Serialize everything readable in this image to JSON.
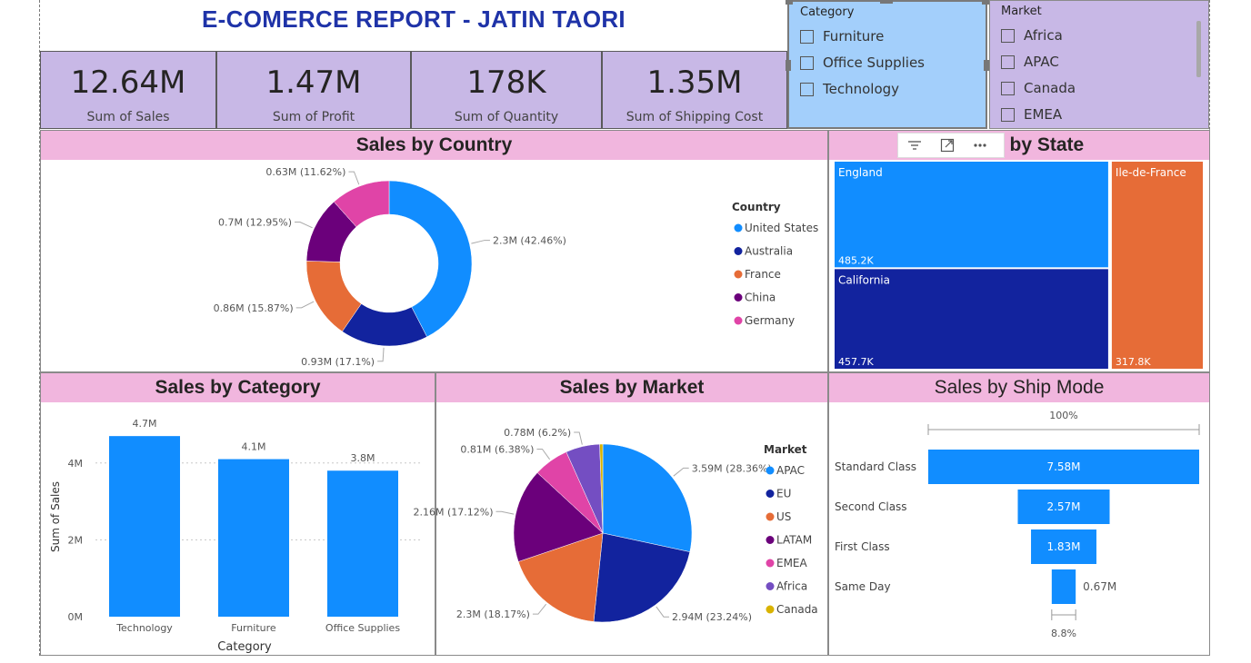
{
  "report_title": "E-COMERCE REPORT - JATIN TAORI",
  "kpis": [
    {
      "value": "12.64M",
      "label": "Sum of Sales"
    },
    {
      "value": "1.47M",
      "label": "Sum of Profit"
    },
    {
      "value": "178K",
      "label": "Sum of Quantity"
    },
    {
      "value": "1.35M",
      "label": "Sum of Shipping Cost"
    }
  ],
  "category_slicer": {
    "header": "Category",
    "items": [
      "Furniture",
      "Office Supplies",
      "Technology"
    ]
  },
  "market_slicer": {
    "header": "Market",
    "items": [
      "Africa",
      "APAC",
      "Canada",
      "EMEA"
    ]
  },
  "colors": {
    "accent": "#118dff",
    "navy": "#12239e",
    "orange": "#e66c37",
    "purple": "#6b007b",
    "pink": "#e044a7",
    "violet": "#744ec2",
    "gold": "#d9b300",
    "kpi_bg": "#c8b8e6",
    "header_bg": "#f1b6de",
    "title": "#1f33a8"
  },
  "visual_header_icons": [
    "filter-icon",
    "focus-mode-icon",
    "more-options-icon"
  ],
  "chart_data": [
    {
      "type": "pie",
      "variant": "donut",
      "title": "Sales by Country",
      "legend_title": "Country",
      "legend_position": "right",
      "slices": [
        {
          "name": "United States",
          "value": 2.3,
          "label": "2.3M (42.46%)",
          "color": "#118dff"
        },
        {
          "name": "Australia",
          "value": 0.93,
          "label": "0.93M (17.1%)",
          "color": "#12239e"
        },
        {
          "name": "France",
          "value": 0.86,
          "label": "0.86M (15.87%)",
          "color": "#e66c37"
        },
        {
          "name": "China",
          "value": 0.7,
          "label": "0.7M (12.95%)",
          "color": "#6b007b"
        },
        {
          "name": "Germany",
          "value": 0.63,
          "label": "0.63M (11.62%)",
          "color": "#e044a7"
        }
      ]
    },
    {
      "type": "treemap",
      "title": "Sales by State",
      "items": [
        {
          "name": "England",
          "value": 485.2,
          "label": "485.2K",
          "color": "#118dff"
        },
        {
          "name": "California",
          "value": 457.7,
          "label": "457.7K",
          "color": "#12239e"
        },
        {
          "name": "Ile-de-France",
          "value": 317.8,
          "label": "317.8K",
          "color": "#e66c37"
        }
      ]
    },
    {
      "type": "bar",
      "title": "Sales by Category",
      "xlabel": "Category",
      "ylabel": "Sum of Sales",
      "categories": [
        "Technology",
        "Furniture",
        "Office Supplies"
      ],
      "values": [
        4.7,
        4.1,
        3.8
      ],
      "data_labels": [
        "4.7M",
        "4.1M",
        "3.8M"
      ],
      "y_ticks": [
        "0M",
        "2M",
        "4M"
      ],
      "ylim": [
        0,
        5.2
      ],
      "grid": true,
      "color": "#118dff"
    },
    {
      "type": "pie",
      "title": "Sales by Market",
      "legend_title": "Market",
      "legend_position": "right",
      "slices": [
        {
          "name": "APAC",
          "value": 3.59,
          "label": "3.59M (28.36%)",
          "color": "#118dff"
        },
        {
          "name": "EU",
          "value": 2.94,
          "label": "2.94M (23.24%)",
          "color": "#12239e"
        },
        {
          "name": "US",
          "value": 2.3,
          "label": "2.3M (18.17%)",
          "color": "#e66c37"
        },
        {
          "name": "LATAM",
          "value": 2.16,
          "label": "2.16M (17.12%)",
          "color": "#6b007b"
        },
        {
          "name": "EMEA",
          "value": 0.81,
          "label": "0.81M (6.38%)",
          "color": "#e044a7"
        },
        {
          "name": "Africa",
          "value": 0.78,
          "label": "0.78M (6.2%)",
          "color": "#744ec2"
        },
        {
          "name": "Canada",
          "value": 0.07,
          "label": "",
          "color": "#d9b300"
        }
      ]
    },
    {
      "type": "funnel",
      "title": "Sales by Ship Mode",
      "top_label": "100%",
      "bottom_label": "8.8%",
      "stages": [
        {
          "name": "Standard Class",
          "value": 7.58,
          "label": "7.58M"
        },
        {
          "name": "Second Class",
          "value": 2.57,
          "label": "2.57M"
        },
        {
          "name": "First Class",
          "value": 1.83,
          "label": "1.83M"
        },
        {
          "name": "Same Day",
          "value": 0.67,
          "label": "0.67M"
        }
      ],
      "color": "#118dff"
    }
  ]
}
